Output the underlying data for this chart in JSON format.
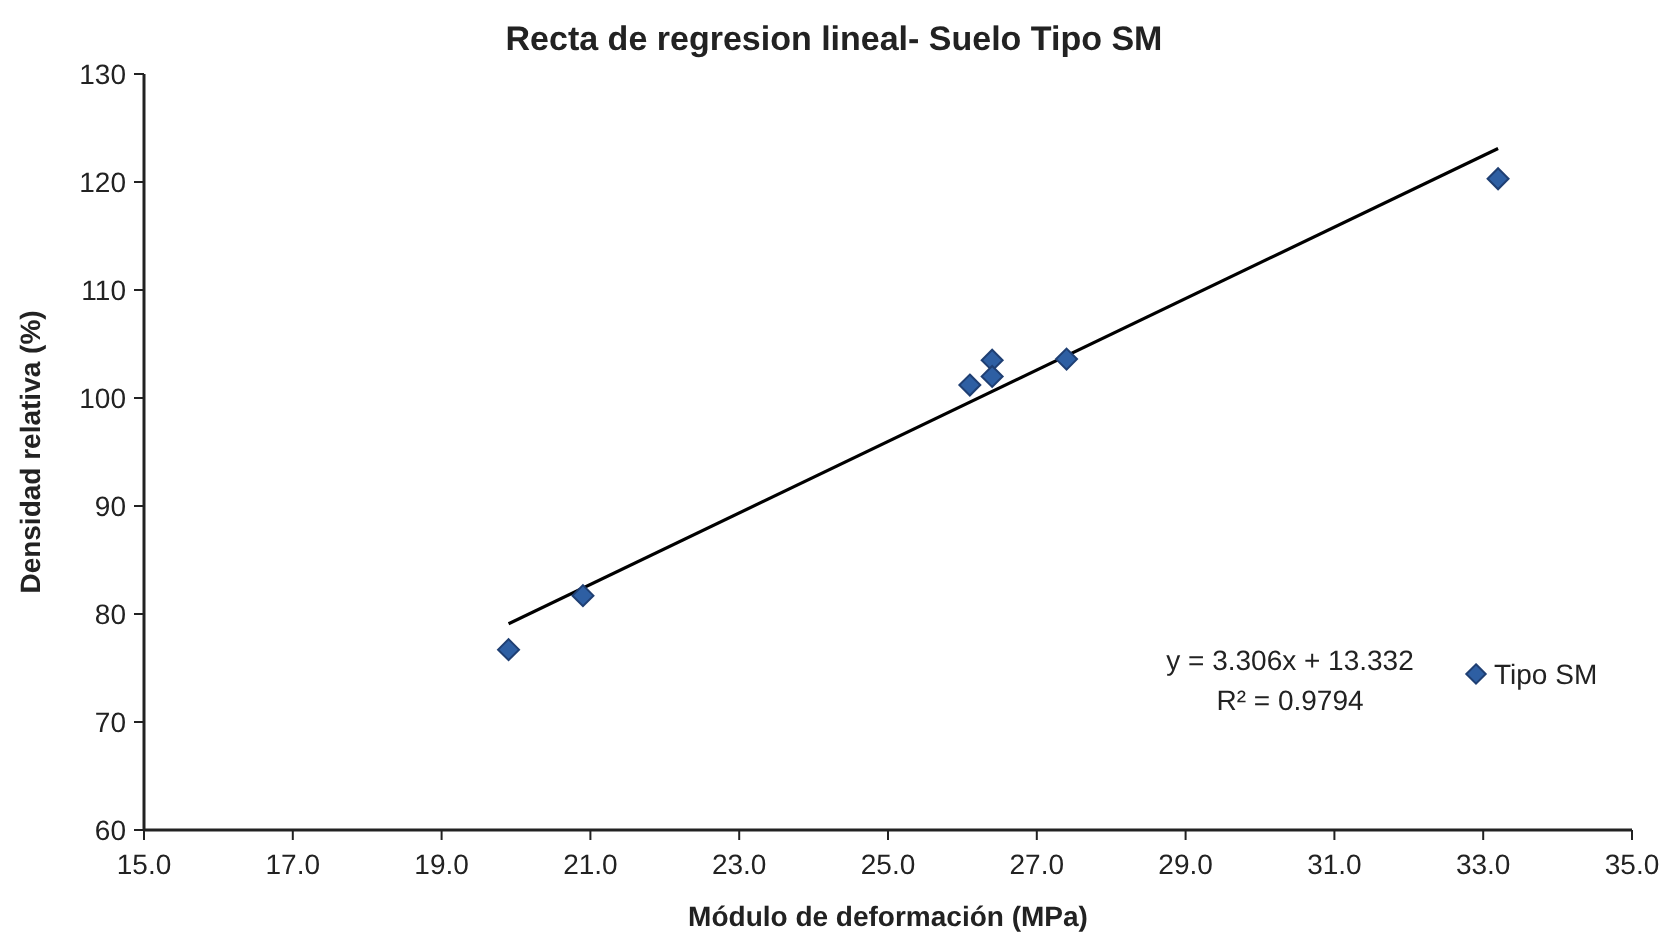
{
  "chart_data": {
    "type": "scatter",
    "title": "Recta de regresion lineal- Suelo Tipo SM",
    "xlabel": "Módulo de deformación (MPa)",
    "ylabel": "Densidad relativa (%)",
    "series": [
      {
        "name": "Tipo SM",
        "color": "#2e5fa3",
        "marker": "diamond",
        "x": [
          19.9,
          20.9,
          26.1,
          26.4,
          26.4,
          27.4,
          33.2
        ],
        "values": [
          76.7,
          81.7,
          101.2,
          103.5,
          102.0,
          103.6,
          120.3
        ]
      },
      {
        "type": "line",
        "color": "#000000",
        "x": [
          19.9,
          33.2
        ],
        "values": [
          79.1,
          123.1
        ]
      }
    ],
    "xlim": [
      15,
      35
    ],
    "xticks": [
      {
        "value": 15,
        "label": "15.0"
      },
      {
        "value": 17,
        "label": "17.0"
      },
      {
        "value": 19,
        "label": "19.0"
      },
      {
        "value": 21,
        "label": "21.0"
      },
      {
        "value": 23,
        "label": "23.0"
      },
      {
        "value": 25,
        "label": "25.0"
      },
      {
        "value": 27,
        "label": "27.0"
      },
      {
        "value": 29,
        "label": "29.0"
      },
      {
        "value": 31,
        "label": "31.0"
      },
      {
        "value": 33,
        "label": "33.0"
      },
      {
        "value": 35,
        "label": "35.0"
      }
    ],
    "ylim": [
      60,
      130
    ],
    "yticks": [
      60,
      70,
      80,
      90,
      100,
      110,
      120,
      130
    ],
    "annotations": [
      "y = 3.306x + 13.332",
      "R² = 0.9794"
    ],
    "legend": "right",
    "grid": false
  }
}
